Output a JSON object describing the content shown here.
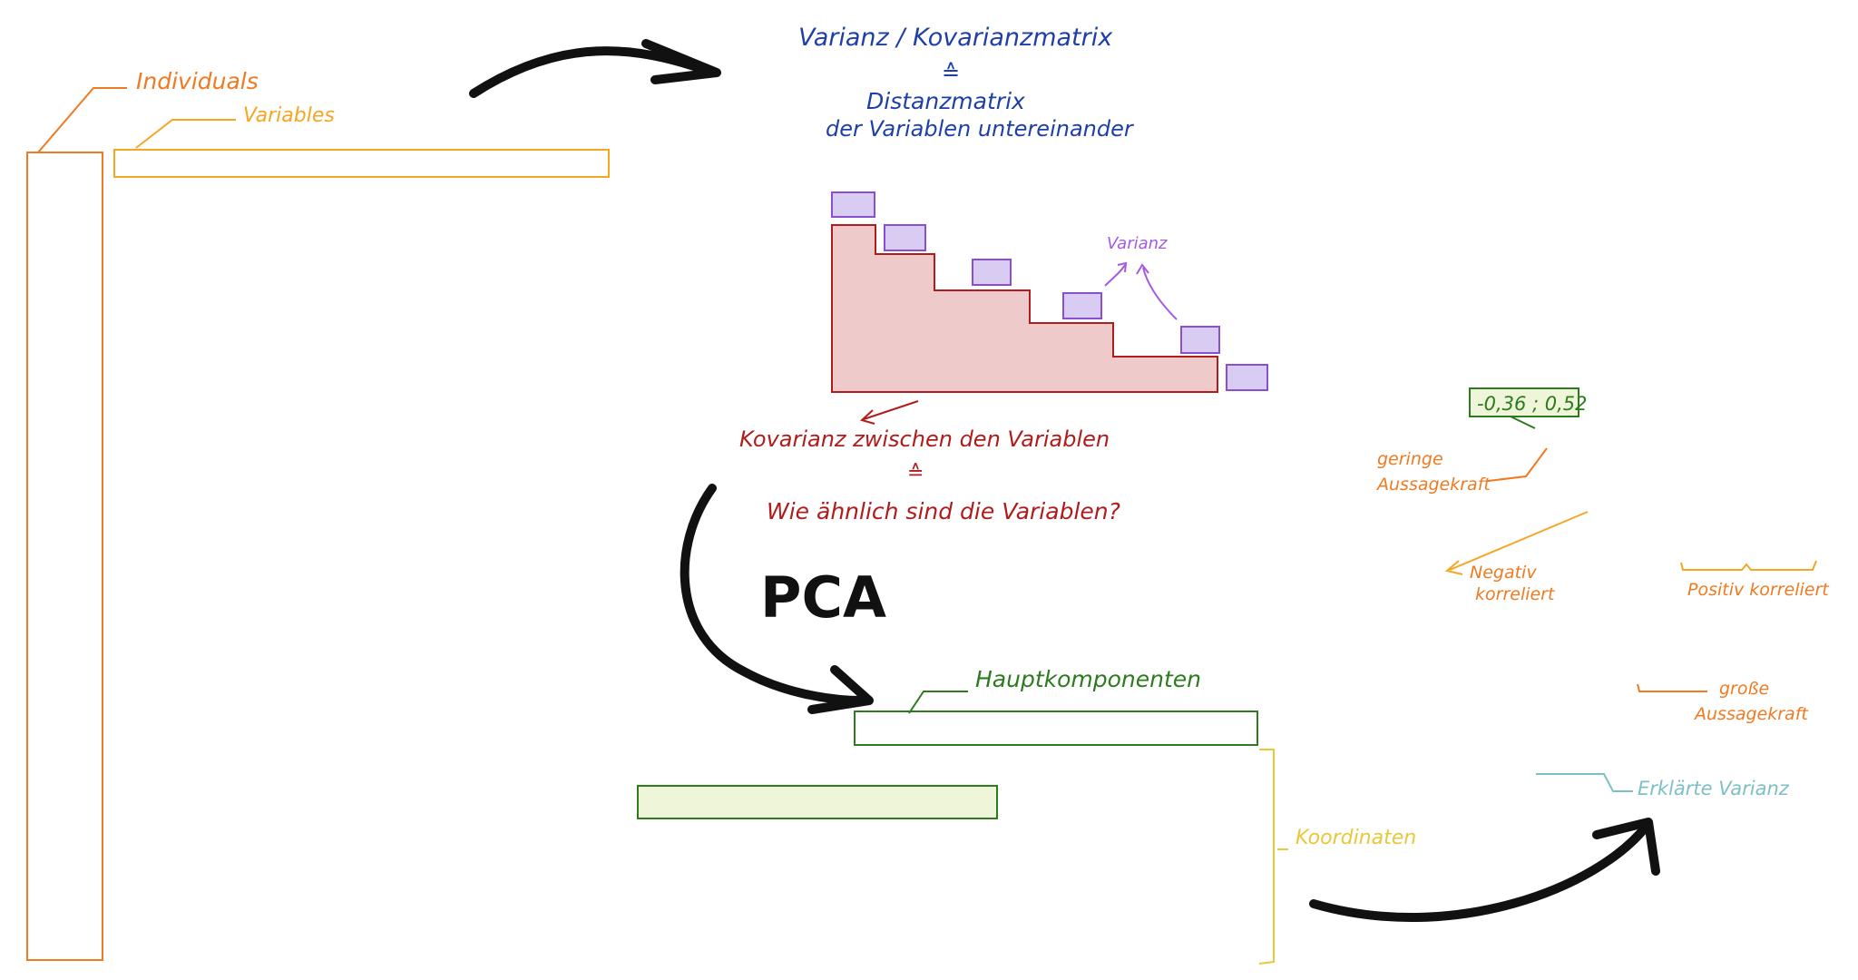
{
  "labels": {
    "individuals": "Individuals",
    "variables": "Variables",
    "matrix_title": "Varianz / Kovarianzmatrix",
    "equiv_1": "≙",
    "distance_matrix_1": "Distanzmatrix",
    "distance_matrix_2": "der Variablen untereinander",
    "varianz": "Varianz",
    "kovarianz": "Kovarianz zwischen den Variablen",
    "equiv_2": "≙",
    "question": "Wie ähnlich sind die Variablen?",
    "pca": "PCA",
    "hauptkomponenten": "Hauptkomponenten",
    "koordinaten": "Koordinaten",
    "range_value": "-0,36 ; 0,52",
    "geringe_1": "geringe",
    "geringe_2": "Aussagekraft",
    "negativ_1": "Negativ",
    "negativ_2": "korreliert",
    "positiv": "Positiv korreliert",
    "grosse_1": "große",
    "grosse_2": "Aussagekraft",
    "erklaerte": "Erklärte Varianz"
  },
  "colors": {
    "orange": "#f07a22",
    "blue": "#1f3fa8",
    "red": "#b01c1c",
    "green": "#2e7a1e",
    "purple": "#a45ae0",
    "yellow": "#e8c83a",
    "teal": "#7cc0c6",
    "staircase_fill": "#eecaca",
    "purple_fill": "#d9ccf2",
    "green_fill": "#eef5d8"
  }
}
